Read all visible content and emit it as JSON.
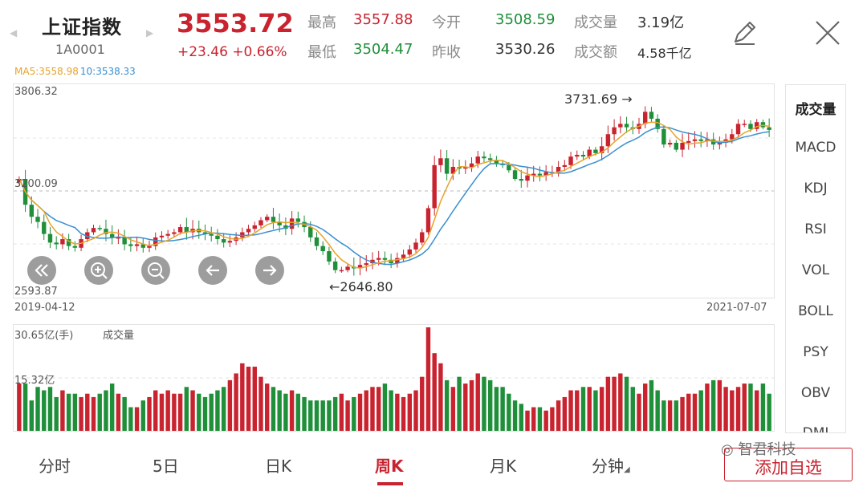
{
  "header": {
    "name": "上证指数",
    "code": "1A0001",
    "price": "3553.72",
    "change": "+23.46 +0.66%",
    "quotes": [
      {
        "label": "最高",
        "value": "3557.88",
        "color": "#c8232f"
      },
      {
        "label": "今开",
        "value": "3508.59",
        "color": "#1f8f3a"
      },
      {
        "label": "成交量",
        "value": "3.19亿",
        "color": "#333333"
      },
      {
        "label": "最低",
        "value": "3504.47",
        "color": "#1f8f3a"
      },
      {
        "label": "昨收",
        "value": "3530.26",
        "color": "#333333"
      },
      {
        "label": "成交额",
        "value": "4.58千亿",
        "color": "#333333"
      }
    ],
    "edit_icon": "edit-icon",
    "close_icon": "close-icon"
  },
  "ma": {
    "ma5": "MA5:3558.98",
    "ma10": "10:3538.33"
  },
  "price_chart": {
    "y_high": "3806.32",
    "y_mid": "3200.09",
    "y_low": "2593.87",
    "max_label": "3731.69",
    "min_label": "2646.80",
    "date_start": "2019-04-12",
    "date_end": "2021-07-07"
  },
  "volume_chart": {
    "y_top": "30.65亿(手)",
    "title": "成交量",
    "y_mid": "15.32亿"
  },
  "indicators": [
    "成交量",
    "MACD",
    "KDJ",
    "RSI",
    "VOL",
    "BOLL",
    "PSY",
    "OBV",
    "DMI"
  ],
  "controls": [
    "rewind-icon",
    "zoom-in-icon",
    "zoom-out-icon",
    "left-arrow-icon",
    "right-arrow-icon"
  ],
  "tabs": [
    "分时",
    "5日",
    "日K",
    "周K",
    "月K",
    "分钟"
  ],
  "active_tab": "周K",
  "add_button": "添加自选",
  "watermark": "智君科技",
  "colors": {
    "up": "#c8232f",
    "down": "#1f8f3a",
    "ma5": "#e7a32b",
    "ma10": "#3a8fd0"
  },
  "chart_data": {
    "type": "candlestick",
    "y_range": [
      2593.87,
      3806.32
    ],
    "volume_range": [
      0,
      30.65
    ],
    "series": [
      {
        "name": "MA5",
        "type": "line"
      },
      {
        "name": "10",
        "type": "line"
      }
    ],
    "close": [
      3270,
      3120,
      3050,
      3020,
      2950,
      2900,
      2890,
      2920,
      2880,
      2870,
      2920,
      2960,
      2985,
      2980,
      2950,
      2930,
      2930,
      2890,
      2880,
      2890,
      2870,
      2880,
      2930,
      2940,
      2950,
      2960,
      2990,
      2960,
      2980,
      2960,
      2950,
      2940,
      2920,
      2900,
      2910,
      2930,
      2960,
      2980,
      3000,
      3030,
      3050,
      3020,
      3000,
      2980,
      3040,
      3020,
      2990,
      2930,
      2880,
      2850,
      2790,
      2740,
      2740,
      2760,
      2750,
      2770,
      2780,
      2800,
      2810,
      2800,
      2780,
      2810,
      2830,
      2860,
      2900,
      2960,
      3100,
      3350,
      3390,
      3300,
      3340,
      3330,
      3340,
      3360,
      3400,
      3390,
      3380,
      3360,
      3350,
      3320,
      3270,
      3260,
      3290,
      3300,
      3290,
      3310,
      3310,
      3340,
      3350,
      3400,
      3410,
      3400,
      3440,
      3420,
      3460,
      3530,
      3570,
      3590,
      3570,
      3560,
      3590,
      3660,
      3620,
      3560,
      3470,
      3480,
      3440,
      3480,
      3490,
      3500,
      3490,
      3500,
      3470,
      3480,
      3500,
      3530,
      3590,
      3590,
      3560,
      3600,
      3570,
      3555
    ],
    "volume": [
      14,
      14,
      9,
      13,
      12,
      13,
      10,
      12,
      11,
      11,
      10,
      11,
      10,
      11,
      12,
      14,
      11,
      10,
      7,
      7,
      9,
      10,
      12,
      11,
      12,
      11,
      11,
      13,
      12,
      11,
      10,
      11,
      12,
      13,
      15,
      17,
      20,
      19,
      19,
      16,
      14,
      13,
      12,
      11,
      12,
      11,
      10,
      9,
      9,
      9,
      9,
      10,
      11,
      9,
      10,
      11,
      12,
      13,
      13,
      14,
      12,
      11,
      10,
      11,
      12,
      16,
      30.65,
      23,
      20,
      15,
      13,
      16,
      14,
      15,
      17,
      16,
      15,
      13,
      13,
      11,
      9,
      8,
      6,
      7,
      7,
      6,
      7,
      9,
      10,
      12,
      12,
      13,
      13,
      12,
      13,
      16,
      16,
      17,
      16,
      13,
      11,
      14,
      15,
      12,
      9,
      9,
      9,
      10,
      11,
      11,
      12,
      14,
      15,
      15,
      13,
      12,
      13,
      14,
      14,
      12,
      14,
      11
    ]
  }
}
